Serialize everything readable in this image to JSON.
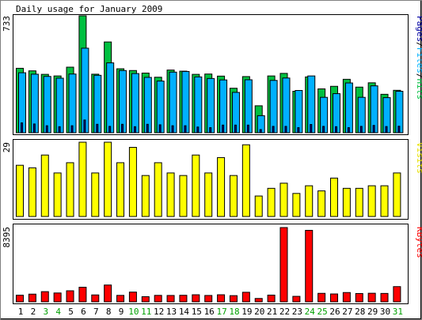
{
  "title": "Daily usage for January 2009",
  "colors": {
    "hits": "#00c040",
    "files": "#00b0ff",
    "pages": "#0000a0",
    "visits": "#ffff00",
    "kbytes": "#ff0000",
    "outline": "#000000",
    "panel_border": "#000000",
    "frame_dark": "#808080",
    "day_label_weekday": "#000000",
    "day_label_weekend": "#00a000"
  },
  "chart_data": [
    {
      "type": "bar",
      "name": "hits-files-pages-panel",
      "categories": [
        "1",
        "2",
        "3",
        "4",
        "5",
        "6",
        "7",
        "8",
        "9",
        "10",
        "11",
        "12",
        "13",
        "14",
        "15",
        "16",
        "17",
        "18",
        "19",
        "20",
        "21",
        "22",
        "23",
        "24",
        "25",
        "26",
        "27",
        "28",
        "29",
        "30",
        "31"
      ],
      "y_label": "733",
      "ylim": [
        0,
        733
      ],
      "legend_parts": [
        {
          "text": "Pages",
          "series": "pages"
        },
        {
          "text": "/",
          "series": "none"
        },
        {
          "text": "Files",
          "series": "files"
        },
        {
          "text": "/",
          "series": "none"
        },
        {
          "text": "Hits",
          "series": "hits"
        }
      ],
      "series": [
        {
          "key": "hits",
          "values": [
            404,
            388,
            366,
            356,
            411,
            733,
            367,
            569,
            401,
            390,
            374,
            348,
            393,
            386,
            366,
            368,
            355,
            279,
            352,
            169,
            356,
            372,
            260,
            350,
            275,
            291,
            335,
            286,
            313,
            241,
            266
          ]
        },
        {
          "key": "files",
          "values": [
            376,
            367,
            353,
            342,
            368,
            530,
            360,
            438,
            390,
            371,
            347,
            324,
            380,
            384,
            350,
            340,
            331,
            253,
            332,
            107,
            328,
            343,
            265,
            356,
            222,
            245,
            312,
            222,
            294,
            220,
            260
          ]
        },
        {
          "key": "pages",
          "values": [
            62,
            55,
            44,
            38,
            44,
            80,
            53,
            40,
            53,
            38,
            53,
            50,
            44,
            44,
            36,
            32,
            48,
            48,
            48,
            20,
            40,
            40,
            32,
            52,
            40,
            38,
            32,
            40,
            46,
            39,
            41
          ]
        }
      ]
    },
    {
      "type": "bar",
      "name": "visits-panel",
      "categories": [
        "1",
        "2",
        "3",
        "4",
        "5",
        "6",
        "7",
        "8",
        "9",
        "10",
        "11",
        "12",
        "13",
        "14",
        "15",
        "16",
        "17",
        "18",
        "19",
        "20",
        "21",
        "22",
        "23",
        "24",
        "25",
        "26",
        "27",
        "28",
        "29",
        "30",
        "31"
      ],
      "y_label": "29",
      "ylim": [
        0,
        29
      ],
      "legend_parts": [
        {
          "text": "Visits",
          "series": "visits"
        }
      ],
      "series": [
        {
          "key": "visits",
          "values": [
            20,
            19,
            24,
            17,
            21,
            29,
            17,
            29,
            21,
            27,
            16,
            21,
            17,
            16,
            24,
            17,
            23,
            16,
            28,
            8,
            11,
            13,
            9,
            12,
            10,
            15,
            11,
            11,
            12,
            12,
            17
          ]
        }
      ]
    },
    {
      "type": "bar",
      "name": "kbytes-panel",
      "categories": [
        "1",
        "2",
        "3",
        "4",
        "5",
        "6",
        "7",
        "8",
        "9",
        "10",
        "11",
        "12",
        "13",
        "14",
        "15",
        "16",
        "17",
        "18",
        "19",
        "20",
        "21",
        "22",
        "23",
        "24",
        "25",
        "26",
        "27",
        "28",
        "29",
        "30",
        "31"
      ],
      "y_label": "8395",
      "ylim": [
        0,
        8395
      ],
      "legend_parts": [
        {
          "text": "KBytes",
          "series": "kbytes"
        }
      ],
      "series": [
        {
          "key": "kbytes",
          "values": [
            750,
            870,
            1150,
            1000,
            1250,
            1650,
            780,
            1900,
            730,
            1100,
            580,
            730,
            720,
            740,
            800,
            720,
            800,
            700,
            1080,
            380,
            760,
            8395,
            620,
            8080,
            960,
            890,
            1050,
            940,
            970,
            950,
            1720
          ]
        }
      ]
    }
  ],
  "weekend_days": [
    "3",
    "4",
    "10",
    "11",
    "17",
    "18",
    "24",
    "25",
    "31"
  ]
}
